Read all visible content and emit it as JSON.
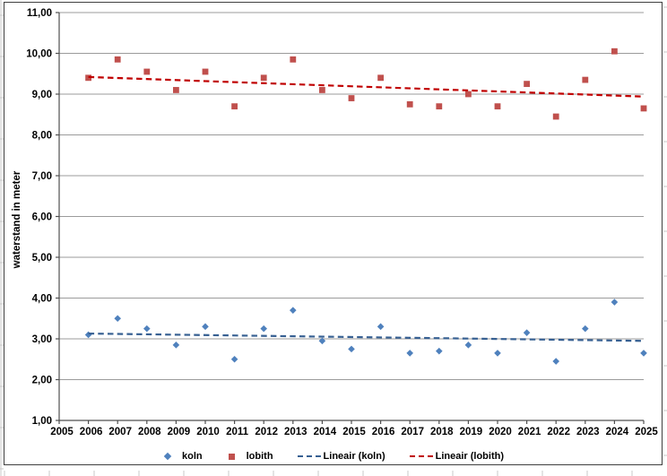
{
  "chart_data": {
    "type": "scatter",
    "title": "",
    "xlabel": "",
    "ylabel": "waterstand in meter",
    "grid": "horizontal",
    "legend_position": "bottom",
    "y_axis": {
      "min": 1,
      "max": 11,
      "step": 1,
      "tick_labels": [
        "11,00",
        "10,00",
        "9,00",
        "8,00",
        "7,00",
        "6,00",
        "5,00",
        "4,00",
        "3,00",
        "2,00",
        "1,00"
      ]
    },
    "x_axis": {
      "min": 2005,
      "max": 2025,
      "step": 1,
      "tick_labels": [
        "2005",
        "2006",
        "2007",
        "2008",
        "2009",
        "2010",
        "2011",
        "2012",
        "2013",
        "2014",
        "2015",
        "2016",
        "2017",
        "2018",
        "2019",
        "2020",
        "2021",
        "2022",
        "2023",
        "2024",
        "2025"
      ]
    },
    "years": [
      2006,
      2007,
      2008,
      2009,
      2010,
      2011,
      2012,
      2013,
      2014,
      2015,
      2016,
      2017,
      2018,
      2019,
      2020,
      2021,
      2022,
      2023,
      2024,
      2025
    ],
    "series": [
      {
        "name": "koln",
        "marker": "diamond",
        "color": "#4F81BD",
        "values": [
          3.1,
          3.5,
          3.25,
          2.85,
          3.3,
          2.5,
          3.25,
          3.7,
          2.95,
          2.75,
          3.3,
          2.65,
          2.7,
          2.85,
          2.65,
          3.15,
          2.45,
          3.25,
          3.9,
          2.65
        ]
      },
      {
        "name": "lobith",
        "marker": "square",
        "color": "#C0504D",
        "values": [
          9.4,
          9.85,
          9.55,
          9.1,
          9.55,
          8.7,
          9.4,
          9.85,
          9.1,
          8.9,
          9.4,
          8.75,
          8.7,
          9.0,
          8.7,
          9.25,
          8.45,
          9.35,
          10.05,
          8.65
        ]
      }
    ],
    "trendlines": [
      {
        "name": "Lineair (koln)",
        "color": "#376092",
        "x_start": 2006,
        "x_end": 2025,
        "y_start": 3.13,
        "y_end": 2.95
      },
      {
        "name": "Lineair (lobith)",
        "color": "#C00000",
        "x_start": 2006,
        "x_end": 2025,
        "y_start": 9.42,
        "y_end": 8.94
      }
    ],
    "legend_items": [
      {
        "label": "koln",
        "swatch": "diamond",
        "color": "#4F81BD"
      },
      {
        "label": "lobith",
        "swatch": "square",
        "color": "#C0504D"
      },
      {
        "label": "Lineair (koln)",
        "swatch": "dashes",
        "color": "#376092"
      },
      {
        "label": "Lineair (lobith)",
        "swatch": "dashes",
        "color": "#C00000"
      }
    ],
    "style": {
      "gridline_color": "#9b9b9b",
      "axis_color": "#4f4f4f",
      "border_color": "#3f3f3f",
      "sheet_line_color": "#c9c9c9",
      "background": "#ffffff"
    }
  }
}
